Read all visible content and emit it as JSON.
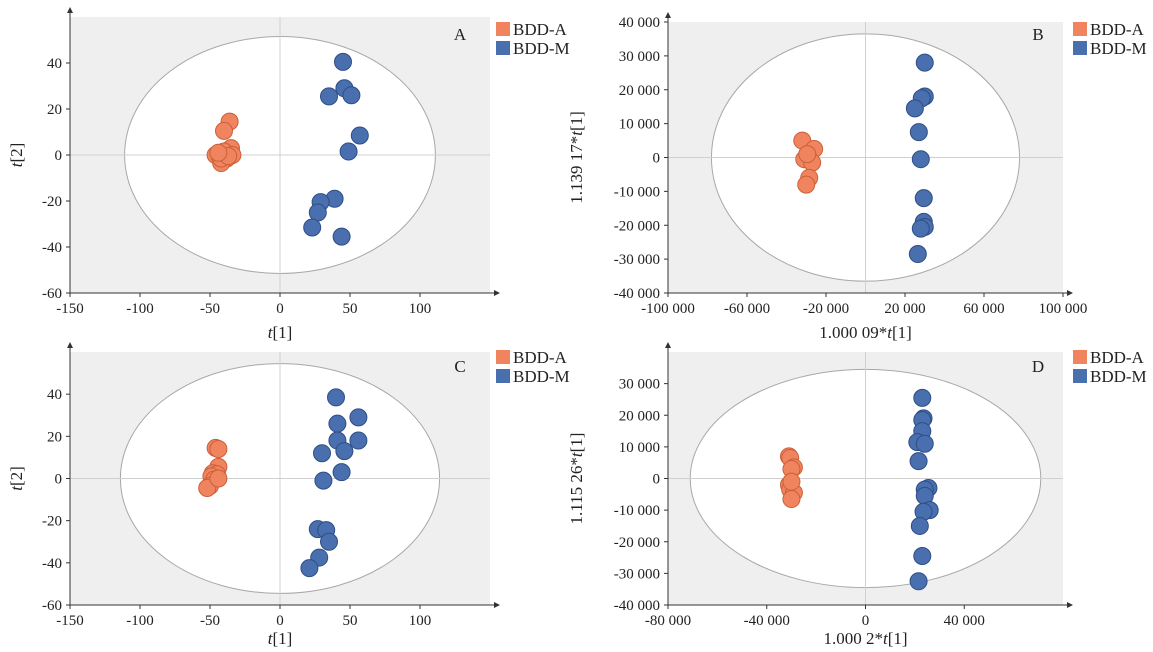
{
  "colors": {
    "series_a": "#F0845E",
    "series_m": "#4A6FAE",
    "plot_bg": "#EFEFEF",
    "ellipse_fill": "#FFFFFF",
    "ellipse_stroke": "#A8A8A8",
    "zero_line": "#D0D0D0"
  },
  "chart_data": [
    {
      "type": "scatter",
      "panel": "A",
      "xlabel_html": "t[1]",
      "xlabel_italic": "t",
      "xlabel_rest": "[1]",
      "xlabel_prefix": "",
      "ylabel_italic": "t",
      "ylabel_rest": "[2]",
      "ylabel_prefix": "",
      "xlim": [
        -150,
        150
      ],
      "ylim": [
        -60,
        60
      ],
      "xticks": [
        -150,
        -100,
        -50,
        0,
        50,
        100
      ],
      "xtick_labels": [
        "-150",
        "-100",
        "-50",
        "0",
        "50",
        "100"
      ],
      "yticks": [
        -60,
        -40,
        -20,
        0,
        20,
        40
      ],
      "ytick_labels": [
        "-60",
        "-40",
        "-20",
        "0",
        "20",
        "40"
      ],
      "ellipse": {
        "rx": 111,
        "ry": 51.5
      },
      "legend": [
        "BDD-A",
        "BDD-M"
      ],
      "series": [
        {
          "name": "BDD-A",
          "points": [
            [
              -36,
              14.5
            ],
            [
              -40,
              10.5
            ],
            [
              -35,
              3
            ],
            [
              -46,
              0
            ],
            [
              -43,
              -0.5
            ],
            [
              -40,
              1.5
            ],
            [
              -34,
              0
            ],
            [
              -38,
              -1.5
            ],
            [
              -42,
              -3.5
            ],
            [
              -42,
              -1.5
            ],
            [
              -37,
              -0.5
            ],
            [
              -44,
              1
            ]
          ]
        },
        {
          "name": "BDD-M",
          "points": [
            [
              45,
              40.5
            ],
            [
              46,
              29
            ],
            [
              51,
              26
            ],
            [
              35,
              25.5
            ],
            [
              57,
              8.5
            ],
            [
              49,
              1.5
            ],
            [
              39,
              -19
            ],
            [
              29,
              -20.5
            ],
            [
              27,
              -25
            ],
            [
              23,
              -31.5
            ],
            [
              44,
              -35.5
            ]
          ]
        }
      ]
    },
    {
      "type": "scatter",
      "panel": "B",
      "xlabel_prefix": "1.000 09*",
      "xlabel_italic": "t",
      "xlabel_rest": "[1]",
      "ylabel_prefix": "1.139 17*",
      "ylabel_italic": "t",
      "ylabel_rest": "[1]",
      "xlim": [
        -100000,
        100000
      ],
      "ylim": [
        -40000,
        40000
      ],
      "xticks": [
        -100000,
        -60000,
        -20000,
        20000,
        60000,
        100000
      ],
      "xtick_labels": [
        "-100 000",
        "-60 000",
        "-20 000",
        "20 000",
        "60 000",
        "100 000"
      ],
      "yticks": [
        -40000,
        -30000,
        -20000,
        -10000,
        0,
        10000,
        20000,
        30000,
        40000
      ],
      "ytick_labels": [
        "-40 000",
        "-30 000",
        "-20 000",
        "-10 000",
        "0",
        "10 000",
        "20 000",
        "30 000",
        "40 000"
      ],
      "ellipse": {
        "rx": 78000,
        "ry": 36500
      },
      "legend": [
        "BDD-A",
        "BDD-M"
      ],
      "series": [
        {
          "name": "BDD-A",
          "points": [
            [
              -32000,
              5000
            ],
            [
              -26000,
              2500
            ],
            [
              -29000,
              0
            ],
            [
              -31000,
              -500
            ],
            [
              -27000,
              -1500
            ],
            [
              -28500,
              -6000
            ],
            [
              -30000,
              -8000
            ],
            [
              -29500,
              1000
            ]
          ]
        },
        {
          "name": "BDD-M",
          "points": [
            [
              30000,
              28000
            ],
            [
              30000,
              18000
            ],
            [
              28500,
              17500
            ],
            [
              25000,
              14500
            ],
            [
              27000,
              7500
            ],
            [
              28000,
              -500
            ],
            [
              29500,
              -12000
            ],
            [
              29500,
              -19000
            ],
            [
              30000,
              -20500
            ],
            [
              28000,
              -21000
            ],
            [
              26500,
              -28500
            ]
          ]
        }
      ]
    },
    {
      "type": "scatter",
      "panel": "C",
      "xlabel_prefix": "",
      "xlabel_italic": "t",
      "xlabel_rest": "[1]",
      "ylabel_prefix": "",
      "ylabel_italic": "t",
      "ylabel_rest": "[2]",
      "xlim": [
        -150,
        150
      ],
      "ylim": [
        -60,
        60
      ],
      "xticks": [
        -150,
        -100,
        -50,
        0,
        50,
        100
      ],
      "xtick_labels": [
        "-150",
        "-100",
        "-50",
        "0",
        "50",
        "100"
      ],
      "yticks": [
        -60,
        -40,
        -20,
        0,
        20,
        40
      ],
      "ytick_labels": [
        "-60",
        "-40",
        "-20",
        "0",
        "20",
        "40"
      ],
      "ellipse": {
        "rx": 114,
        "ry": 54.5
      },
      "legend": [
        "BDD-A",
        "BDD-M"
      ],
      "series": [
        {
          "name": "BDD-A",
          "points": [
            [
              -46,
              14.5
            ],
            [
              -44,
              14
            ],
            [
              -44,
              5.5
            ],
            [
              -48,
              2.5
            ],
            [
              -45,
              2
            ],
            [
              -49,
              1
            ],
            [
              -47,
              -0.5
            ],
            [
              -50,
              -3.5
            ],
            [
              -52,
              -4.5
            ],
            [
              -44,
              0
            ]
          ]
        },
        {
          "name": "BDD-M",
          "points": [
            [
              40,
              38.5
            ],
            [
              56,
              29
            ],
            [
              41,
              26
            ],
            [
              41,
              18
            ],
            [
              56,
              18
            ],
            [
              46,
              13
            ],
            [
              30,
              12
            ],
            [
              44,
              3
            ],
            [
              31,
              -1
            ],
            [
              27,
              -24
            ],
            [
              33,
              -24.5
            ],
            [
              35,
              -30
            ],
            [
              28,
              -37.5
            ],
            [
              21,
              -42.5
            ]
          ]
        }
      ]
    },
    {
      "type": "scatter",
      "panel": "D",
      "xlabel_prefix": "1.000 2*",
      "xlabel_italic": "t",
      "xlabel_rest": "[1]",
      "ylabel_prefix": "1.115 26*",
      "ylabel_italic": "t",
      "ylabel_rest": "[1]",
      "xlim": [
        -80000,
        80000
      ],
      "ylim": [
        -40000,
        40000
      ],
      "xticks": [
        -80000,
        -40000,
        0,
        40000
      ],
      "xtick_labels": [
        "-80 000",
        "-40 000",
        "0",
        "40 000"
      ],
      "yticks": [
        -40000,
        -30000,
        -20000,
        -10000,
        0,
        10000,
        20000,
        30000
      ],
      "ytick_labels": [
        "-40 000",
        "-30 000",
        "-20 000",
        "-10 000",
        "0",
        "10 000",
        "20 000",
        "30 000"
      ],
      "ellipse": {
        "rx": 71000,
        "ry": 34500
      },
      "legend": [
        "BDD-A",
        "BDD-M"
      ],
      "series": [
        {
          "name": "BDD-A",
          "points": [
            [
              -31000,
              7000
            ],
            [
              -30500,
              6500
            ],
            [
              -29000,
              3500
            ],
            [
              -30000,
              3000
            ],
            [
              -31000,
              -2000
            ],
            [
              -30500,
              -3500
            ],
            [
              -29000,
              -4500
            ],
            [
              -30000,
              -6500
            ],
            [
              -30000,
              -1000
            ]
          ]
        },
        {
          "name": "BDD-M",
          "points": [
            [
              23000,
              25500
            ],
            [
              23500,
              19000
            ],
            [
              23000,
              18500
            ],
            [
              23000,
              15000
            ],
            [
              21000,
              11500
            ],
            [
              24000,
              11000
            ],
            [
              21500,
              5500
            ],
            [
              25500,
              -3000
            ],
            [
              24000,
              -3500
            ],
            [
              24000,
              -5500
            ],
            [
              26000,
              -10000
            ],
            [
              23500,
              -10500
            ],
            [
              22000,
              -15000
            ],
            [
              23000,
              -24500
            ],
            [
              21500,
              -32500
            ]
          ]
        }
      ]
    }
  ]
}
